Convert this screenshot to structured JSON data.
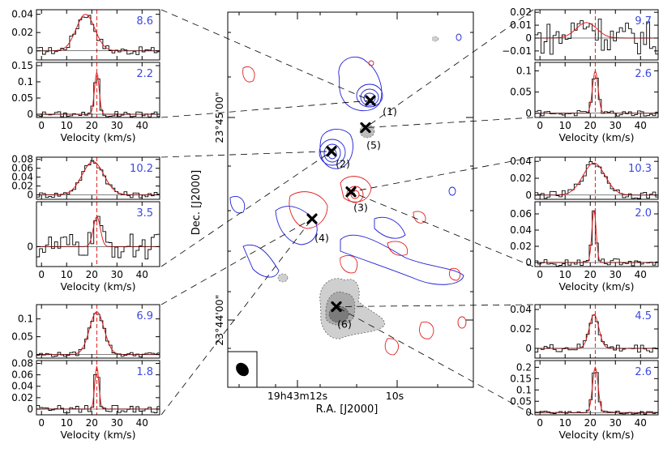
{
  "colors": {
    "blue": "#1f1fd6",
    "red": "#e01f1f",
    "grey": "#999999",
    "label": "#3b49e0"
  },
  "map": {
    "ra_label": "R.A. [J2000]",
    "dec_label": "Dec. [J2000]",
    "ra_ticks": [
      {
        "text": "19h43m12s",
        "ra_s": 12
      },
      {
        "text": "10s",
        "ra_s": 10
      }
    ],
    "dec_ticks": [
      {
        "text": "23°45'00\"",
        "dec": 0
      },
      {
        "text": "23°44'00\"",
        "dec": -60
      }
    ],
    "sources": [
      {
        "label": "(1)",
        "ra_s": 10.5,
        "dec": 5
      },
      {
        "label": "(5)",
        "ra_s": 10.6,
        "dec": -3
      },
      {
        "label": "(2)",
        "ra_s": 11.3,
        "dec": -10
      },
      {
        "label": "(3)",
        "ra_s": 10.9,
        "dec": -22
      },
      {
        "label": "(4)",
        "ra_s": 11.7,
        "dec": -30
      },
      {
        "label": "(6)",
        "ra_s": 11.2,
        "dec": -56
      }
    ]
  },
  "chart_data": [
    {
      "source": "(1)",
      "type": "line",
      "xlabel": "Velocity (km/s)",
      "xlim": [
        -2,
        47
      ],
      "vline": 22,
      "upper": {
        "label": "8.6",
        "ylim": [
          -0.01,
          0.045
        ],
        "yticks": [
          "0",
          "0.02",
          "0.04"
        ],
        "fit": {
          "amp": 0.04,
          "center": 17.5,
          "sigma": 3.7
        },
        "noise": 0.002
      },
      "lower": {
        "label": "2.2",
        "ylim": [
          -0.01,
          0.16
        ],
        "yticks": [
          "0",
          "0.05",
          "0.1",
          "0.15"
        ],
        "fit": {
          "amp": 0.13,
          "center": 22,
          "sigma": 0.9
        },
        "noise": 0.004
      }
    },
    {
      "source": "(2)",
      "type": "line",
      "xlabel": "Velocity (km/s)",
      "xlim": [
        -2,
        47
      ],
      "vline": 22,
      "upper": {
        "label": "10.2",
        "ylim": [
          -0.01,
          0.085
        ],
        "yticks": [
          "0",
          "0.02",
          "0.04",
          "0.06",
          "0.08"
        ],
        "fit": {
          "amp": 0.075,
          "center": 20.5,
          "sigma": 4.3
        },
        "noise": 0.003
      },
      "lower": {
        "label": "3.5",
        "ylim": [
          -0.02,
          0.045
        ],
        "yticks": [
          "0"
        ],
        "fit": {
          "amp": 0.03,
          "center": 22,
          "sigma": 1.4
        },
        "noise": 0.006
      }
    },
    {
      "source": "(4)",
      "type": "line",
      "xlabel": "Velocity (km/s)",
      "xlim": [
        -2,
        47
      ],
      "vline": 22,
      "upper": {
        "label": "6.9",
        "ylim": [
          -0.01,
          0.14
        ],
        "yticks": [
          "0",
          "0.05",
          "0.1"
        ],
        "fit": {
          "amp": 0.12,
          "center": 22,
          "sigma": 2.9
        },
        "noise": 0.003
      },
      "lower": {
        "label": "1.8",
        "ylim": [
          -0.01,
          0.085
        ],
        "yticks": [
          "0",
          "0.02",
          "0.04",
          "0.06",
          "0.08"
        ],
        "fit": {
          "amp": 0.075,
          "center": 22,
          "sigma": 0.8
        },
        "noise": 0.003
      }
    },
    {
      "source": "(5)",
      "type": "line",
      "xlabel": "Velocity (km/s)",
      "xlim": [
        -2,
        47
      ],
      "vline": 22,
      "upper": {
        "label": "9.7",
        "ylim": [
          -0.017,
          0.022
        ],
        "yticks": [
          "−0.01",
          "0",
          "0.01",
          "0.02"
        ],
        "fit": {
          "amp": 0.012,
          "center": 18.5,
          "sigma": 4.1
        },
        "noise": 0.006
      },
      "lower": {
        "label": "2.6",
        "ylim": [
          -0.01,
          0.12
        ],
        "yticks": [
          "0",
          "0.05",
          "0.1"
        ],
        "fit": {
          "amp": 0.1,
          "center": 22,
          "sigma": 1.1
        },
        "noise": 0.003
      }
    },
    {
      "source": "(3)",
      "type": "line",
      "xlabel": "Velocity (km/s)",
      "xlim": [
        -2,
        47
      ],
      "vline": 22,
      "upper": {
        "label": "10.3",
        "ylim": [
          -0.005,
          0.045
        ],
        "yticks": [
          "0",
          "0.02",
          "0.04"
        ],
        "fit": {
          "amp": 0.038,
          "center": 21.5,
          "sigma": 4.4
        },
        "noise": 0.002
      },
      "lower": {
        "label": "2.0",
        "ylim": [
          -0.005,
          0.075
        ],
        "yticks": [
          "0",
          "0.02",
          "0.04",
          "0.06"
        ],
        "fit": {
          "amp": 0.065,
          "center": 21.5,
          "sigma": 0.85
        },
        "noise": 0.002
      }
    },
    {
      "source": "(6)",
      "type": "line",
      "xlabel": "Velocity (km/s)",
      "xlim": [
        -2,
        47
      ],
      "vline": 22,
      "upper": {
        "label": "4.5",
        "ylim": [
          -0.01,
          0.045
        ],
        "yticks": [
          "0",
          "0.02",
          "0.04"
        ],
        "fit": {
          "amp": 0.035,
          "center": 21.5,
          "sigma": 1.9
        },
        "noise": 0.002
      },
      "lower": {
        "label": "2.6",
        "ylim": [
          -0.01,
          0.23
        ],
        "yticks": [
          "0",
          "0.05",
          "0.1",
          "0.15",
          "0.2"
        ],
        "fit": {
          "amp": 0.2,
          "center": 22,
          "sigma": 1.1
        },
        "noise": 0.003
      }
    }
  ]
}
